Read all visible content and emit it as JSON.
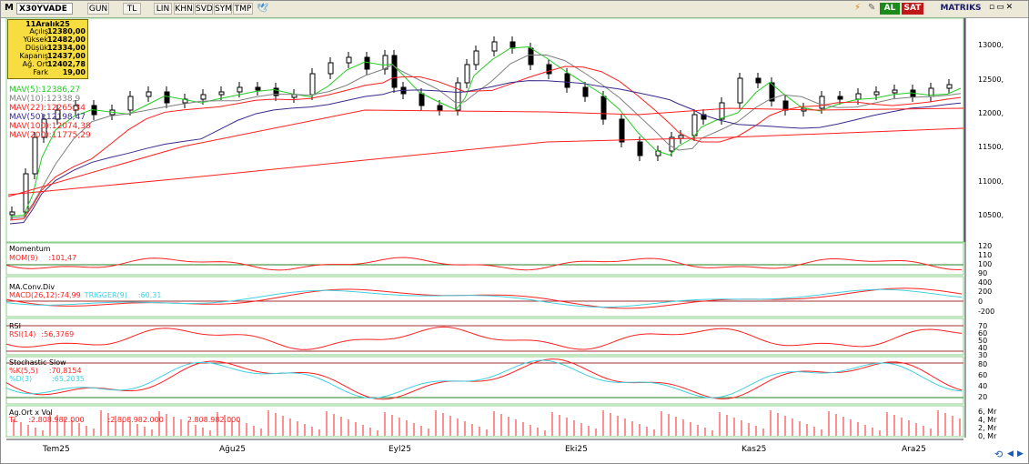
{
  "toolbar": {
    "menu_label": "M",
    "symbol": "X30YVADE",
    "buttons": [
      "GUN",
      "TL",
      "LIN",
      "KHN",
      "SVD",
      "SYM",
      "TMP"
    ],
    "al_label": "AL",
    "sat_label": "SAT",
    "brand": "MATRIKS"
  },
  "infobox": {
    "date": "11Aralık25",
    "rows": [
      {
        "label": "Açılış",
        "value": "12380,00"
      },
      {
        "label": "Yüksek",
        "value": "12482,00"
      },
      {
        "label": "Düşük",
        "value": "12334,00"
      },
      {
        "label": "Kapanış",
        "value": "12437,00"
      },
      {
        "label": "Ağ. Ort",
        "value": "12402,78"
      },
      {
        "label": "Fark",
        "value": "19,00"
      }
    ]
  },
  "mavs": [
    {
      "label": "MAV(5)",
      "value": ":12386,27",
      "color": "#22cc22"
    },
    {
      "label": "MAV(10)",
      "value": ":12338,9",
      "color": "#808080"
    },
    {
      "label": "MAV(22)",
      "value": ":12265,34",
      "color": "#ff2020"
    },
    {
      "label": "MAV(50)",
      "value": ":12198,47",
      "color": "#3a2a8a"
    },
    {
      "label": "MAV(100)",
      "value": ":12074,38",
      "color": "#ff2020"
    },
    {
      "label": "MAV(200)",
      "value": ":11775,29",
      "color": "#ff2020"
    }
  ],
  "price_axis": [
    "13000,",
    "12500,",
    "12000,",
    "11500,",
    "11000,",
    "10500,"
  ],
  "panels": {
    "momentum": {
      "title": "Momentum",
      "line": "MOM(9)",
      "value": ":101,47",
      "axis": [
        "120",
        "110",
        "100",
        "90"
      ]
    },
    "macd": {
      "title": "MA.Conv.Div",
      "line": "MACD(26,12)",
      "value": ":74,99",
      "trigger": "TRIGGER(9)",
      "trigger_value": ":60,31",
      "axis": [
        "400",
        "200",
        "0",
        "-200"
      ]
    },
    "rsi": {
      "title": "RSI",
      "line": "RSI(14)",
      "value": ":56,3769",
      "axis": [
        "70",
        "60",
        "50",
        "40",
        "30"
      ]
    },
    "stoch": {
      "title": "Stochastic Slow",
      "k": "%K(5,5)",
      "k_value": ":70,8154",
      "d": "%D(3)",
      "d_value": ":65,2035",
      "axis": [
        "80",
        "60",
        "40",
        "20"
      ]
    },
    "volume": {
      "title": "Ag.Ort x Vol",
      "line": "TL",
      "v1": ":2.808.982.000",
      "v2": "2.808.982.000",
      "v3": ":2.808.982.000",
      "axis": [
        "6, Mr",
        "4, Mr",
        "2, Mr",
        "0, Mr"
      ]
    }
  },
  "dates": [
    "Tem25",
    "Ağu25",
    "Eyl25",
    "Eki25",
    "Kas25",
    "Ara25"
  ],
  "colors": {
    "up": "#ffffff",
    "down": "#000000",
    "green": "#22cc22",
    "red": "#ff2020",
    "cyan": "#40d0e0",
    "purple": "#8040a0"
  }
}
